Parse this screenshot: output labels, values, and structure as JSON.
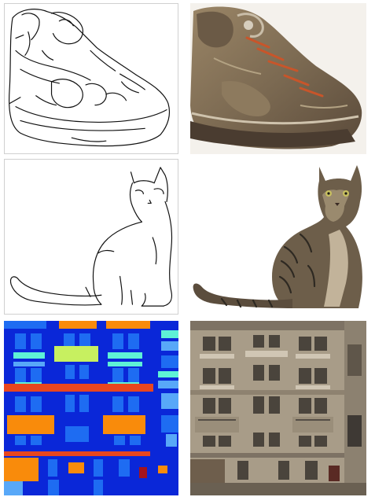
{
  "grid": {
    "rows": [
      {
        "left": {
          "kind": "edge-sketch",
          "subject": "shoe"
        },
        "right": {
          "kind": "generated-photo",
          "subject": "shoe",
          "colors": [
            "#8a7458",
            "#5c4a3a",
            "#c8552a",
            "#d9cfbf"
          ]
        }
      },
      {
        "left": {
          "kind": "edge-sketch",
          "subject": "cat"
        },
        "right": {
          "kind": "generated-photo",
          "subject": "cat",
          "colors": [
            "#6d5e4a",
            "#3b342b",
            "#9a8a6e",
            "#c2b39a"
          ]
        }
      },
      {
        "left": {
          "kind": "label-map",
          "subject": "building-facade",
          "colors": [
            "#0a27d8",
            "#1e6cf2",
            "#58a8f8",
            "#f98b0b",
            "#e8461e",
            "#c7f060",
            "#5ef2d6",
            "#a6131c"
          ]
        },
        "right": {
          "kind": "generated-photo",
          "subject": "building-facade",
          "colors": [
            "#a89c88",
            "#7d7264",
            "#3e3934",
            "#d0c6b4"
          ]
        }
      }
    ]
  }
}
